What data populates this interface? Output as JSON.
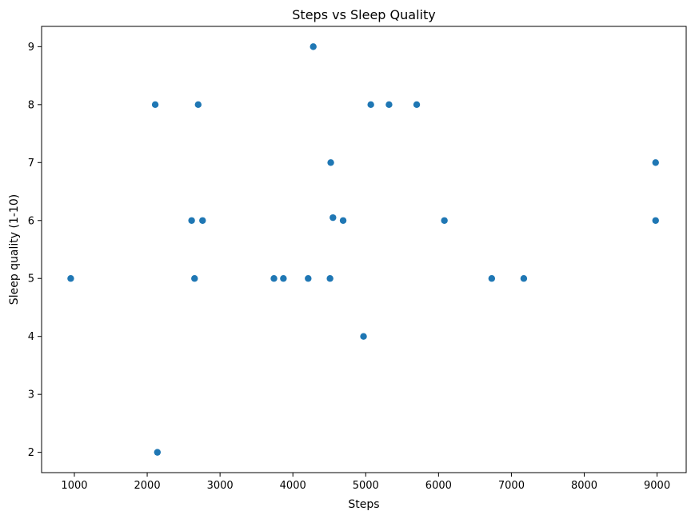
{
  "chart_data": {
    "type": "scatter",
    "title": "Steps vs Sleep Quality",
    "xlabel": "Steps",
    "ylabel": "Sleep quality (1-10)",
    "xlim": [
      550,
      9400
    ],
    "ylim": [
      1.65,
      9.35
    ],
    "xticks": [
      1000,
      2000,
      3000,
      4000,
      5000,
      6000,
      7000,
      8000,
      9000
    ],
    "yticks": [
      2,
      3,
      4,
      5,
      6,
      7,
      8,
      9
    ],
    "grid": false,
    "marker_color": "#1f77b4",
    "points": [
      {
        "x": 950,
        "y": 5
      },
      {
        "x": 2110,
        "y": 8
      },
      {
        "x": 2140,
        "y": 2
      },
      {
        "x": 2610,
        "y": 6
      },
      {
        "x": 2650,
        "y": 5
      },
      {
        "x": 2700,
        "y": 8
      },
      {
        "x": 2760,
        "y": 6
      },
      {
        "x": 3740,
        "y": 5
      },
      {
        "x": 3870,
        "y": 5
      },
      {
        "x": 4210,
        "y": 5
      },
      {
        "x": 4280,
        "y": 9
      },
      {
        "x": 4510,
        "y": 5
      },
      {
        "x": 4520,
        "y": 7
      },
      {
        "x": 4550,
        "y": 6.05
      },
      {
        "x": 4690,
        "y": 6
      },
      {
        "x": 4970,
        "y": 4
      },
      {
        "x": 5070,
        "y": 8
      },
      {
        "x": 5320,
        "y": 8
      },
      {
        "x": 5700,
        "y": 8
      },
      {
        "x": 6080,
        "y": 6
      },
      {
        "x": 6730,
        "y": 5
      },
      {
        "x": 7170,
        "y": 5
      },
      {
        "x": 8980,
        "y": 7
      },
      {
        "x": 8980,
        "y": 6
      }
    ]
  }
}
